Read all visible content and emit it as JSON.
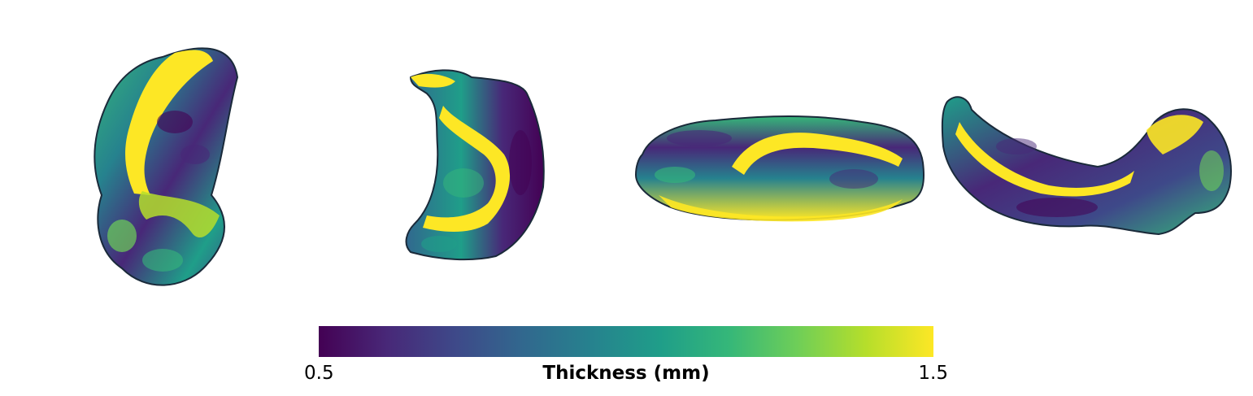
{
  "colorbar": {
    "min_label": "0.5",
    "max_label": "1.5",
    "title": "Thickness (mm)",
    "min_value": 0.5,
    "max_value": 1.5,
    "colormap": "viridis",
    "colors": [
      "#440154",
      "#482878",
      "#3e4989",
      "#31688e",
      "#26828e",
      "#1f9e89",
      "#35b779",
      "#6ece58",
      "#b5de2b",
      "#fde725"
    ]
  },
  "views": [
    {
      "name": "surface-view-1"
    },
    {
      "name": "surface-view-2"
    },
    {
      "name": "surface-view-3"
    },
    {
      "name": "surface-view-4"
    }
  ]
}
